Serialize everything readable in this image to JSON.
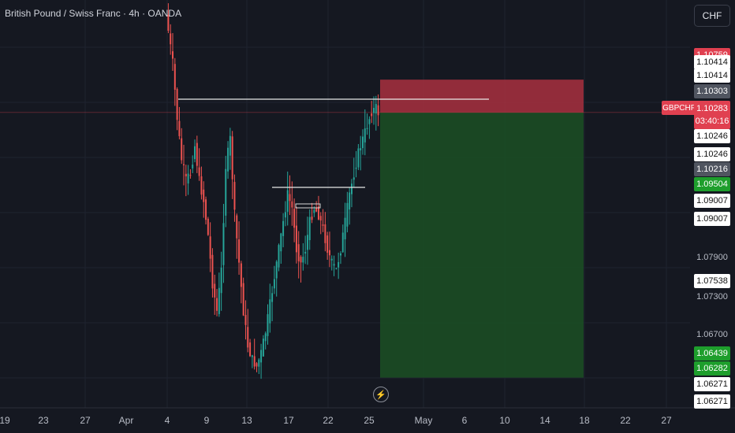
{
  "header": {
    "title": "British Pound / Swiss Franc · 4h · OANDA"
  },
  "currency_button": "CHF",
  "symbol_tag": "GBPCHF",
  "current_price": {
    "value": "1.10283",
    "countdown": "03:40:16"
  },
  "price_tags": [
    {
      "text": "1.10759",
      "style": "red"
    },
    {
      "text": "1.10414",
      "style": "white"
    },
    {
      "text": "1.10414",
      "style": "white"
    },
    {
      "text": "1.10303",
      "style": "gray"
    },
    {
      "text": "1.10246",
      "style": "white"
    },
    {
      "text": "1.10246",
      "style": "white"
    },
    {
      "text": "1.10216",
      "style": "gray"
    },
    {
      "text": "1.09504",
      "style": "green"
    },
    {
      "text": "1.09007",
      "style": "white"
    },
    {
      "text": "1.09007",
      "style": "white"
    },
    {
      "text": "1.07538",
      "style": "white"
    },
    {
      "text": "1.06439",
      "style": "green"
    },
    {
      "text": "1.06282",
      "style": "green"
    },
    {
      "text": "1.06271",
      "style": "white"
    },
    {
      "text": "1.06271",
      "style": "white"
    }
  ],
  "price_axis_labels": [
    "1.07900",
    "1.07300",
    "1.06700"
  ],
  "time_axis_labels": [
    "19",
    "23",
    "27",
    "Apr",
    "4",
    "9",
    "13",
    "17",
    "22",
    "25",
    "May",
    "6",
    "10",
    "14",
    "18",
    "22",
    "27"
  ],
  "colors": {
    "background": "#151821",
    "up_candle": "#26a69a",
    "down_candle": "#ef5350",
    "stop_zone": "#a8303e",
    "target_zone": "#1b4d24",
    "crosshair": "#e04050"
  },
  "chart_data": {
    "type": "candlestick",
    "symbol": "GBPCHF",
    "timeframe": "4h",
    "x_labels": [
      "19",
      "23",
      "27",
      "Apr",
      "4",
      "9",
      "13",
      "17",
      "22",
      "25",
      "May",
      "6",
      "10",
      "14",
      "18",
      "22",
      "27"
    ],
    "price_range": [
      1.0615,
      1.114
    ],
    "current_price": 1.10283,
    "price_path": [
      [
        0,
        1.117
      ],
      [
        3,
        1.11
      ],
      [
        5,
        1.102
      ],
      [
        7,
        1.096
      ],
      [
        9,
        1.093
      ],
      [
        11,
        1.094
      ],
      [
        13,
        1.098
      ],
      [
        15,
        1.093
      ],
      [
        17,
        1.09
      ],
      [
        19,
        1.085
      ],
      [
        21,
        1.078
      ],
      [
        23,
        1.074
      ],
      [
        25,
        1.08
      ],
      [
        27,
        1.095
      ],
      [
        29,
        1.099
      ],
      [
        31,
        1.088
      ],
      [
        33,
        1.081
      ],
      [
        35,
        1.074
      ],
      [
        37,
        1.069
      ],
      [
        39,
        1.067
      ],
      [
        41,
        1.066
      ],
      [
        43,
        1.068
      ],
      [
        45,
        1.071
      ],
      [
        47,
        1.075
      ],
      [
        49,
        1.079
      ],
      [
        51,
        1.083
      ],
      [
        53,
        1.087
      ],
      [
        55,
        1.091
      ],
      [
        57,
        1.089
      ],
      [
        59,
        1.083
      ],
      [
        61,
        1.081
      ],
      [
        63,
        1.083
      ],
      [
        65,
        1.087
      ],
      [
        67,
        1.089
      ],
      [
        69,
        1.088
      ],
      [
        71,
        1.086
      ],
      [
        73,
        1.083
      ],
      [
        75,
        1.081
      ],
      [
        77,
        1.08
      ],
      [
        79,
        1.083
      ],
      [
        81,
        1.087
      ],
      [
        83,
        1.091
      ],
      [
        85,
        1.094
      ],
      [
        87,
        1.097
      ],
      [
        89,
        1.099
      ],
      [
        91,
        1.101
      ],
      [
        93,
        1.103
      ],
      [
        95,
        1.1035
      ],
      [
        96,
        1.1028
      ]
    ],
    "position": {
      "type": "short",
      "entry": 1.10283,
      "stop": 1.10759,
      "target": 1.06439
    },
    "horizontal_lines": [
      1.1041,
      1.095
    ],
    "grid": true
  }
}
